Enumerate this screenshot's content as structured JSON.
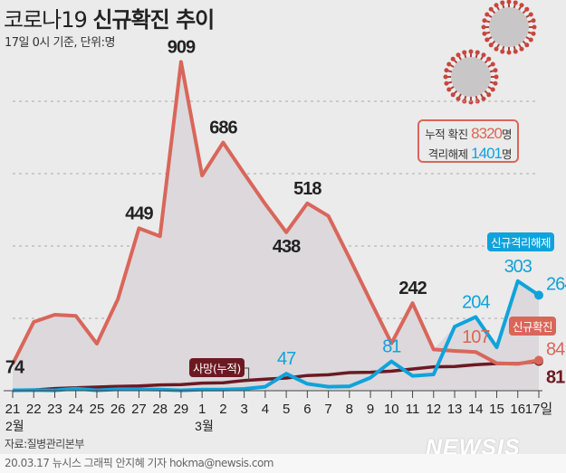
{
  "header": {
    "title_plain": "코로나19 ",
    "title_bold": "신규확진 추이",
    "subtitle": "17일 0시 기준, 단위:명"
  },
  "legend": {
    "total_label": "누적 확진 ",
    "total_value": "8320",
    "released_label": "격리해제 ",
    "released_value": "1401",
    "unit": "명"
  },
  "tags": {
    "released": "신규격리해제",
    "confirmed": "신규확진",
    "deaths": "사망(누적)"
  },
  "footer": {
    "source": "자료:질병관리본부",
    "credit": "20.03.17 뉴시스 그래픽 안지혜 기자 hokma@newsis.com",
    "logo": "NEWSIS"
  },
  "colors": {
    "confirmed": "#d9665a",
    "released": "#0fa3dc",
    "deaths": "#6b1a22",
    "area": "#dcd8dc",
    "background": "#ebebeb"
  },
  "chart_data": {
    "type": "line",
    "categories": [
      "21",
      "22",
      "23",
      "24",
      "25",
      "26",
      "27",
      "28",
      "29",
      "1",
      "2",
      "3",
      "4",
      "5",
      "6",
      "7",
      "8",
      "9",
      "10",
      "11",
      "12",
      "13",
      "14",
      "15",
      "16",
      "17일"
    ],
    "month_labels": [
      {
        "index": 0,
        "text": "2월"
      },
      {
        "index": 9,
        "text": "3월"
      }
    ],
    "ylim": [
      0,
      1000
    ],
    "grid": true,
    "gridlines": [
      200,
      400,
      600,
      800
    ],
    "series": [
      {
        "name": "신규확진",
        "key": "confirmed",
        "values": [
          74,
          190,
          210,
          207,
          130,
          253,
          449,
          427,
          909,
          595,
          686,
          600,
          516,
          438,
          518,
          483,
          367,
          248,
          131,
          242,
          114,
          110,
          107,
          76,
          74,
          84
        ]
      },
      {
        "name": "신규격리해제",
        "key": "released",
        "values": [
          1,
          2,
          1,
          6,
          1,
          4,
          4,
          3,
          1,
          3,
          3,
          5,
          11,
          47,
          19,
          11,
          12,
          36,
          81,
          41,
          45,
          177,
          204,
          120,
          303,
          264
        ]
      },
      {
        "name": "사망(누적)",
        "key": "deaths",
        "values": [
          1,
          2,
          6,
          8,
          10,
          12,
          13,
          16,
          17,
          21,
          22,
          28,
          32,
          35,
          42,
          44,
          50,
          51,
          54,
          60,
          66,
          67,
          72,
          75,
          75,
          81
        ]
      }
    ],
    "data_labels": [
      {
        "series": "confirmed",
        "index": 0,
        "text": "74",
        "color": "#222"
      },
      {
        "series": "confirmed",
        "index": 6,
        "text": "449",
        "color": "#222"
      },
      {
        "series": "confirmed",
        "index": 8,
        "text": "909",
        "color": "#222"
      },
      {
        "series": "confirmed",
        "index": 10,
        "text": "686",
        "color": "#222"
      },
      {
        "series": "confirmed",
        "index": 13,
        "text": "438",
        "color": "#222",
        "below": true
      },
      {
        "series": "confirmed",
        "index": 14,
        "text": "518",
        "color": "#222"
      },
      {
        "series": "confirmed",
        "index": 19,
        "text": "242",
        "color": "#222"
      },
      {
        "series": "confirmed",
        "index": 22,
        "text": "107",
        "color": "#d9665a"
      },
      {
        "series": "confirmed",
        "index": 25,
        "text": "84",
        "color": "#d9665a",
        "right": true
      },
      {
        "series": "deaths",
        "index": 25,
        "text": "81",
        "color": "#6b1a22",
        "right": true,
        "below": true
      },
      {
        "series": "released",
        "index": 13,
        "text": "47",
        "color": "#0fa3dc"
      },
      {
        "series": "released",
        "index": 18,
        "text": "81",
        "color": "#0fa3dc"
      },
      {
        "series": "released",
        "index": 22,
        "text": "204",
        "color": "#0fa3dc"
      },
      {
        "series": "released",
        "index": 24,
        "text": "303",
        "color": "#0fa3dc"
      },
      {
        "series": "released",
        "index": 25,
        "text": "264",
        "color": "#0fa3dc",
        "right": true
      }
    ]
  }
}
